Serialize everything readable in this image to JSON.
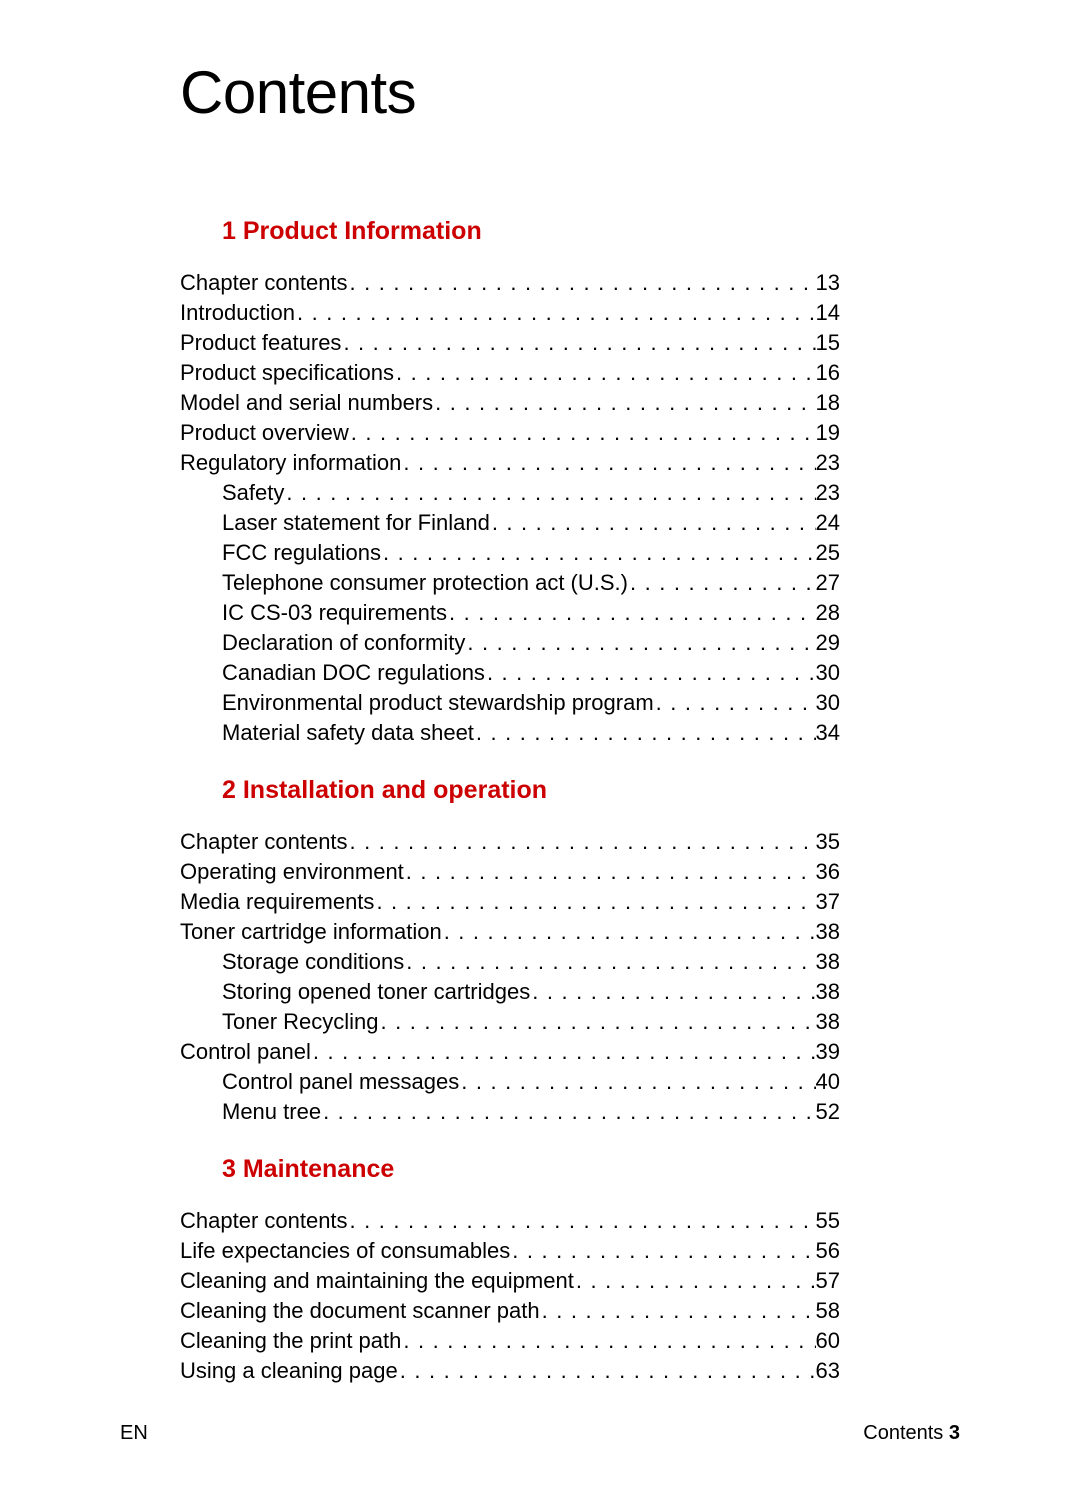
{
  "title": "Contents",
  "heading_color": "#cc0000",
  "text_color": "#000000",
  "background_color": "#ffffff",
  "fonts": {
    "title_size": 60,
    "heading_size": 25,
    "body_size": 22,
    "footer_size": 20
  },
  "sections": [
    {
      "number": "1",
      "title": "Product Information",
      "entries": [
        {
          "label": "Chapter contents",
          "page": "13",
          "indent": 0
        },
        {
          "label": "Introduction",
          "page": "14",
          "indent": 0
        },
        {
          "label": "Product features",
          "page": "15",
          "indent": 0
        },
        {
          "label": "Product specifications",
          "page": "16",
          "indent": 0
        },
        {
          "label": "Model and serial numbers",
          "page": "18",
          "indent": 0
        },
        {
          "label": "Product overview",
          "page": "19",
          "indent": 0
        },
        {
          "label": "Regulatory information",
          "page": "23",
          "indent": 0
        },
        {
          "label": "Safety",
          "page": "23",
          "indent": 1
        },
        {
          "label": "Laser statement for Finland",
          "page": "24",
          "indent": 1
        },
        {
          "label": "FCC regulations",
          "page": "25",
          "indent": 1
        },
        {
          "label": "Telephone consumer protection act (U.S.)",
          "page": "27",
          "indent": 1
        },
        {
          "label": "IC CS-03 requirements",
          "page": "28",
          "indent": 1
        },
        {
          "label": "Declaration of conformity",
          "page": "29",
          "indent": 1
        },
        {
          "label": "Canadian DOC regulations",
          "page": "30",
          "indent": 1
        },
        {
          "label": "Environmental product stewardship program",
          "page": "30",
          "indent": 1
        },
        {
          "label": "Material safety data sheet",
          "page": "34",
          "indent": 1
        }
      ]
    },
    {
      "number": "2",
      "title": "Installation and operation",
      "entries": [
        {
          "label": "Chapter contents",
          "page": "35",
          "indent": 0
        },
        {
          "label": "Operating environment",
          "page": "36",
          "indent": 0
        },
        {
          "label": "Media requirements",
          "page": "37",
          "indent": 0
        },
        {
          "label": "Toner cartridge information",
          "page": "38",
          "indent": 0
        },
        {
          "label": "Storage conditions",
          "page": "38",
          "indent": 1
        },
        {
          "label": "Storing opened toner cartridges",
          "page": "38",
          "indent": 1
        },
        {
          "label": "Toner Recycling",
          "page": "38",
          "indent": 1
        },
        {
          "label": "Control panel",
          "page": "39",
          "indent": 0
        },
        {
          "label": "Control panel messages",
          "page": "40",
          "indent": 1
        },
        {
          "label": "Menu tree",
          "page": "52",
          "indent": 1
        }
      ]
    },
    {
      "number": "3",
      "title": "Maintenance",
      "entries": [
        {
          "label": "Chapter contents",
          "page": "55",
          "indent": 0
        },
        {
          "label": "Life expectancies of consumables",
          "page": "56",
          "indent": 0
        },
        {
          "label": "Cleaning and maintaining the equipment",
          "page": "57",
          "indent": 0
        },
        {
          "label": "Cleaning the document scanner path",
          "page": "58",
          "indent": 0
        },
        {
          "label": "Cleaning the print path",
          "page": "60",
          "indent": 0
        },
        {
          "label": "Using a cleaning page",
          "page": "63",
          "indent": 0
        }
      ]
    }
  ],
  "footer": {
    "left": "EN",
    "right_label": "Contents",
    "right_page": "3"
  }
}
